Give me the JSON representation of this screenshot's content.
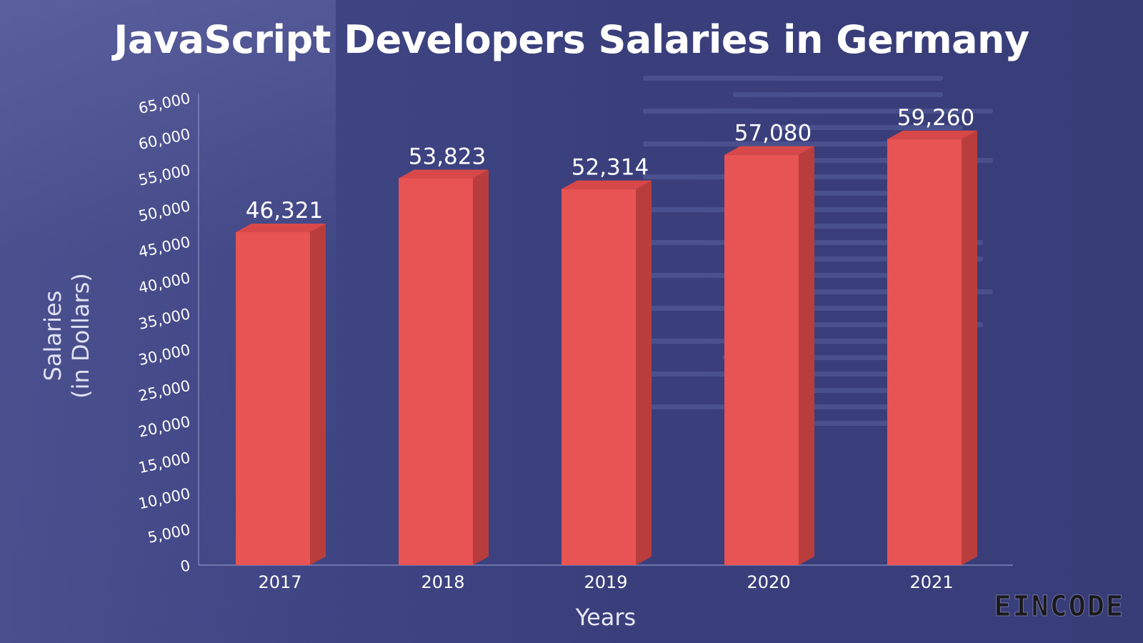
{
  "chart_data": {
    "type": "bar",
    "title": "JavaScript Developers Salaries in Germany",
    "xlabel": "Years",
    "ylabel": [
      "Salaries",
      "(in Dollars)"
    ],
    "categories": [
      "2017",
      "2018",
      "2019",
      "2020",
      "2021"
    ],
    "values": [
      46321,
      53823,
      52314,
      57080,
      59260
    ],
    "value_labels": [
      "46,321",
      "53,823",
      "52,314",
      "57,080",
      "59,260"
    ],
    "ylim": [
      0,
      65000
    ],
    "yticks": [
      "0",
      "5,000",
      "10,000",
      "15,000",
      "20,000",
      "25,000",
      "30,000",
      "35,000",
      "40,000",
      "45,000",
      "50,000",
      "55,000",
      "60,000",
      "65,000"
    ],
    "grid": false,
    "legend": "none",
    "colors": {
      "bar_front": "#e85353",
      "bar_side": "#b93d3d",
      "bar_top": "#d84848"
    }
  },
  "brand": "EINCODE"
}
